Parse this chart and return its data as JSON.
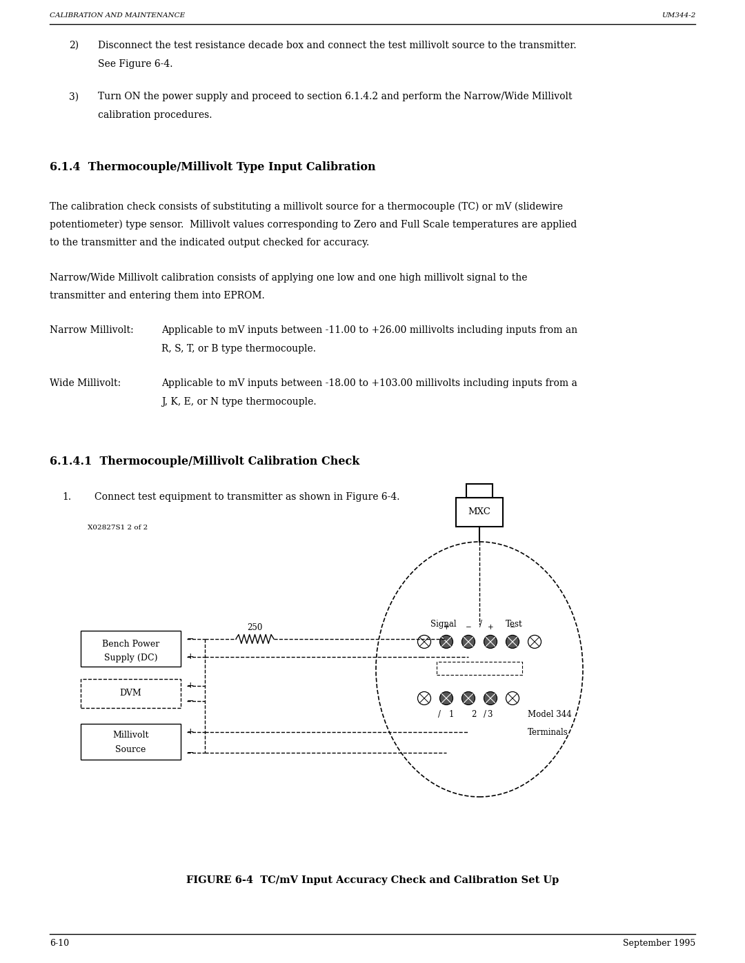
{
  "bg_color": "#ffffff",
  "text_color": "#000000",
  "header_left": "CALIBRATION AND MAINTENANCE",
  "header_right": "UM344-2",
  "footer_left": "6-10",
  "footer_right": "September 1995",
  "section_title": "6.1.4  Thermocouple/Millivolt Type Input Calibration",
  "para1_lines": [
    "The calibration check consists of substituting a millivolt source for a thermocouple (TC) or mV (slidewire",
    "potentiometer) type sensor.  Millivolt values corresponding to Zero and Full Scale temperatures are applied",
    "to the transmitter and the indicated output checked for accuracy."
  ],
  "para2_lines": [
    "Narrow/Wide Millivolt calibration consists of applying one low and one high millivolt signal to the",
    "transmitter and entering them into EPROM."
  ],
  "narrow_label": "Narrow Millivolt:",
  "narrow_lines": [
    "Applicable to mV inputs between -11.00 to +26.00 millivolts including inputs from an",
    "R, S, T, or B type thermocouple."
  ],
  "wide_label": "Wide Millivolt:",
  "wide_lines": [
    "Applicable to mV inputs between -18.00 to +103.00 millivolts including inputs from a",
    "J, K, E, or N type thermocouple."
  ],
  "subsection_title": "6.1.4.1  Thermocouple/Millivolt Calibration Check",
  "step1": "Connect test equipment to transmitter as shown in Figure 6-4.",
  "fig_label": "X02827S1 2 of 2",
  "fig_caption": "FIGURE 6-4  TC/mV Input Accuracy Check and Calibration Set Up"
}
